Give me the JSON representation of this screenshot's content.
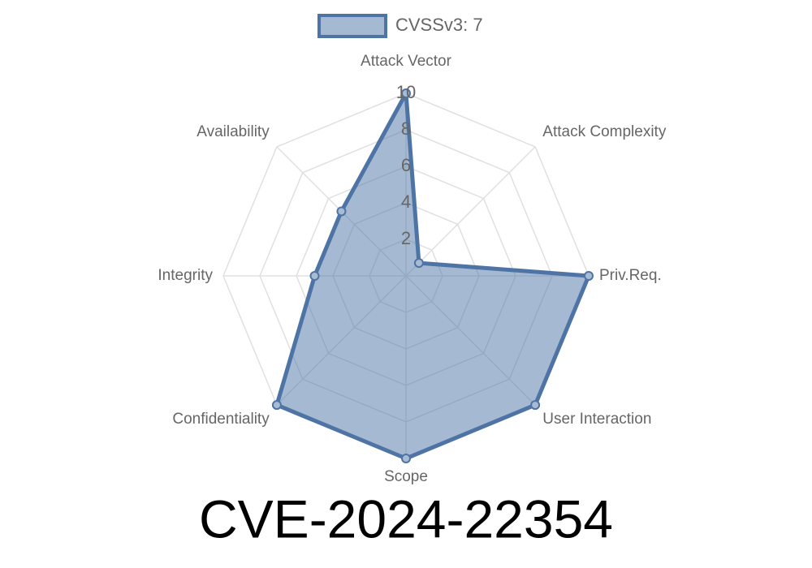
{
  "chart_data": {
    "type": "radar",
    "title": "CVE-2024-22354",
    "categories": [
      "Attack Vector",
      "Attack Complexity",
      "Priv.Req.",
      "User Interaction",
      "Scope",
      "Confidentiality",
      "Integrity",
      "Availability"
    ],
    "series": [
      {
        "name": "CVSSv3: 7",
        "color": "#4e74a6",
        "values": [
          10,
          1,
          10,
          10,
          10,
          10,
          5,
          5
        ]
      }
    ],
    "rlim": [
      0,
      10
    ],
    "rticks": [
      2,
      4,
      6,
      8,
      10
    ],
    "grid": true,
    "legend": "top"
  }
}
